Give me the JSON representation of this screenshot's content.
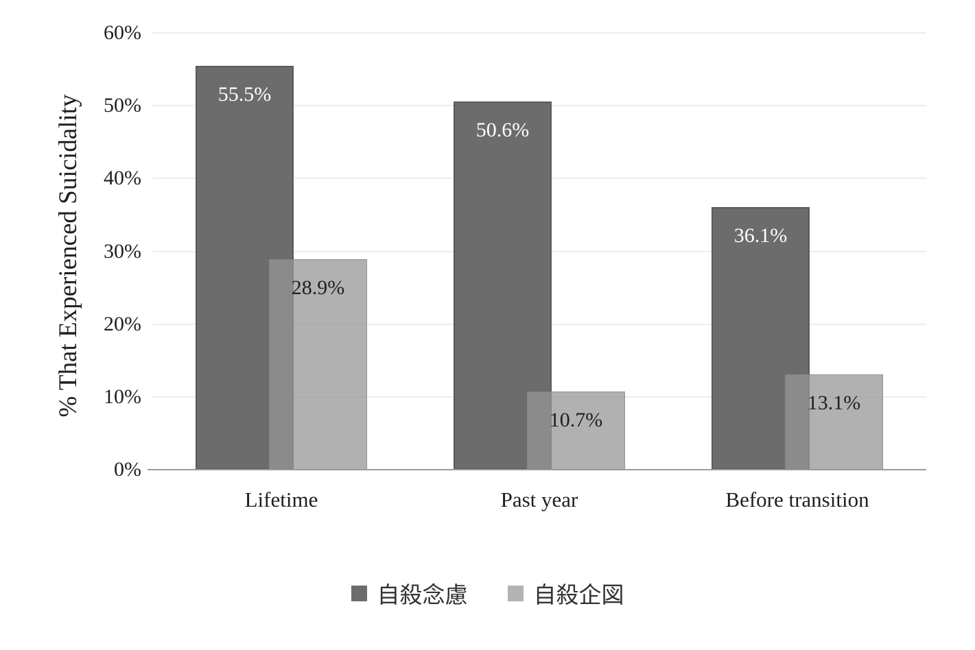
{
  "chart_data": {
    "type": "bar",
    "title": "",
    "categories": [
      "Lifetime",
      "Past year",
      "Before transition"
    ],
    "series": [
      {
        "name": "自殺念慮",
        "values": [
          55.5,
          50.6,
          36.1
        ],
        "data_labels": [
          "55.5%",
          "50.6%",
          "36.1%"
        ],
        "color": "#6c6c6c",
        "label_color": "#ffffff"
      },
      {
        "name": "自殺企図",
        "values": [
          28.9,
          10.7,
          13.1
        ],
        "data_labels": [
          "28.9%",
          "10.7%",
          "13.1%"
        ],
        "color": "#b3b3b3",
        "fill_rgba": "rgba(150,150,150,0.74)",
        "label_color": "#1f1f1f"
      }
    ],
    "xlabel": "",
    "ylabel": "% That Experienced Suicidality",
    "ylim": [
      0,
      60
    ],
    "y_ticks": [
      {
        "label": "0%",
        "value": 0
      },
      {
        "label": "10%",
        "value": 10
      },
      {
        "label": "20%",
        "value": 20
      },
      {
        "label": "30%",
        "value": 30
      },
      {
        "label": "40%",
        "value": 40
      },
      {
        "label": "50%",
        "value": 50
      },
      {
        "label": "60%",
        "value": 60
      }
    ],
    "grid": true,
    "grid_color": "#ededed",
    "axis_color": "#9b9b9b",
    "bar_style": "overlapped",
    "legend_position": "bottom"
  }
}
